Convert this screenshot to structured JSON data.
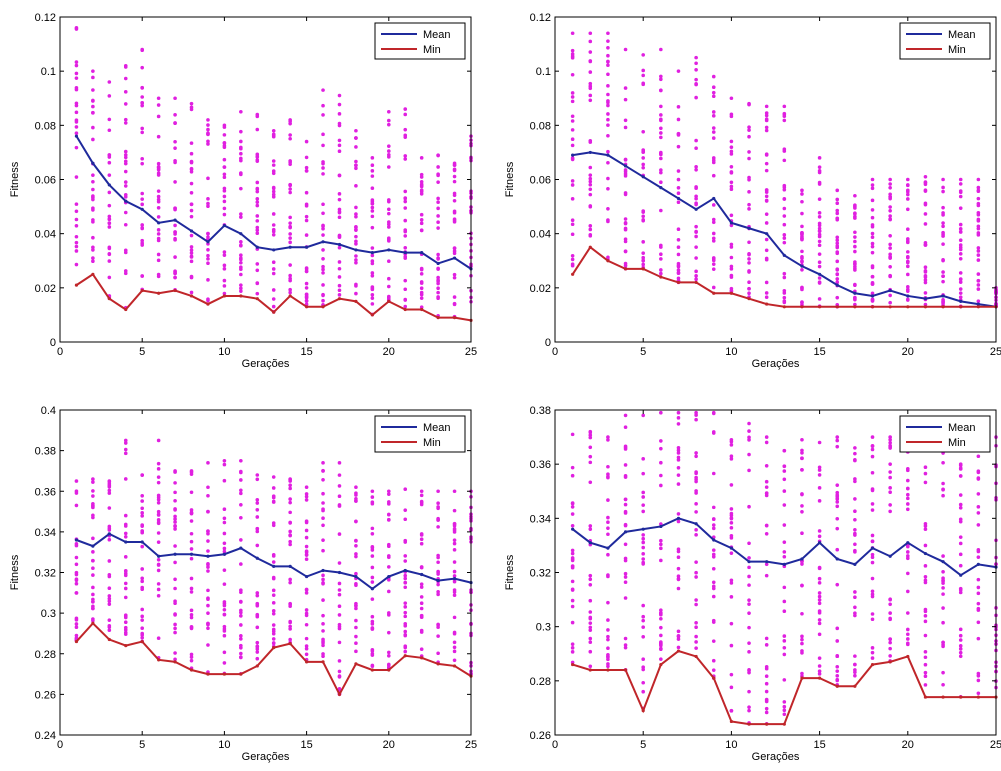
{
  "colors": {
    "mean": "#1f2a9c",
    "min": "#c0262a",
    "points": "#e020e0",
    "axis": "#000000",
    "background": "#ffffff"
  },
  "chart_data": [
    {
      "type": "scatter",
      "title": "",
      "xlabel": "Gerações",
      "ylabel": "Fitness",
      "xlim": [
        0,
        25
      ],
      "ylim": [
        0,
        0.12
      ],
      "xticks": [
        0,
        5,
        10,
        15,
        20,
        25
      ],
      "yticks": [
        0,
        0.02,
        0.04,
        0.06,
        0.08,
        0.1,
        0.12
      ],
      "xtick_labels": [
        "0",
        "5",
        "10",
        "15",
        "20",
        "25"
      ],
      "ytick_labels": [
        "0",
        "0.02",
        "0.04",
        "0.06",
        "0.08",
        "0.1",
        "0.12"
      ],
      "legend": {
        "position": "top-right",
        "entries": [
          "Mean",
          "Min"
        ]
      },
      "grid": false,
      "x": [
        1,
        2,
        3,
        4,
        5,
        6,
        7,
        8,
        9,
        10,
        11,
        12,
        13,
        14,
        15,
        16,
        17,
        18,
        19,
        20,
        21,
        22,
        23,
        24,
        25
      ],
      "series": [
        {
          "name": "Mean",
          "values": [
            0.076,
            0.066,
            0.058,
            0.052,
            0.049,
            0.044,
            0.045,
            0.041,
            0.037,
            0.043,
            0.04,
            0.035,
            0.034,
            0.035,
            0.035,
            0.037,
            0.036,
            0.034,
            0.033,
            0.034,
            0.033,
            0.033,
            0.029,
            0.031,
            0.027
          ]
        },
        {
          "name": "Min",
          "values": [
            0.021,
            0.025,
            0.016,
            0.012,
            0.019,
            0.018,
            0.019,
            0.017,
            0.014,
            0.017,
            0.017,
            0.016,
            0.011,
            0.017,
            0.013,
            0.013,
            0.016,
            0.015,
            0.01,
            0.015,
            0.012,
            0.012,
            0.009,
            0.009,
            0.008
          ]
        }
      ],
      "population_range": {
        "max": [
          0.116,
          0.1,
          0.096,
          0.102,
          0.108,
          0.09,
          0.09,
          0.088,
          0.082,
          0.08,
          0.085,
          0.084,
          0.078,
          0.082,
          0.074,
          0.093,
          0.091,
          0.078,
          0.068,
          0.085,
          0.086,
          0.068,
          0.069,
          0.066,
          0.076
        ]
      }
    },
    {
      "type": "scatter",
      "title": "",
      "xlabel": "Gerações",
      "ylabel": "Fitness",
      "xlim": [
        0,
        25
      ],
      "ylim": [
        0,
        0.12
      ],
      "xticks": [
        0,
        5,
        10,
        15,
        20,
        25
      ],
      "yticks": [
        0,
        0.02,
        0.04,
        0.06,
        0.08,
        0.1,
        0.12
      ],
      "xtick_labels": [
        "0",
        "5",
        "10",
        "15",
        "20",
        "25"
      ],
      "ytick_labels": [
        "0",
        "0.02",
        "0.04",
        "0.06",
        "0.08",
        "0.1",
        "0.12"
      ],
      "legend": {
        "position": "top-right",
        "entries": [
          "Mean",
          "Min"
        ]
      },
      "grid": false,
      "x": [
        1,
        2,
        3,
        4,
        5,
        6,
        7,
        8,
        9,
        10,
        11,
        12,
        13,
        14,
        15,
        16,
        17,
        18,
        19,
        20,
        21,
        22,
        23,
        24,
        25
      ],
      "series": [
        {
          "name": "Mean",
          "values": [
            0.069,
            0.07,
            0.069,
            0.065,
            0.061,
            0.057,
            0.053,
            0.049,
            0.053,
            0.044,
            0.042,
            0.04,
            0.032,
            0.028,
            0.025,
            0.021,
            0.018,
            0.017,
            0.019,
            0.017,
            0.016,
            0.017,
            0.015,
            0.014,
            0.013
          ]
        },
        {
          "name": "Min",
          "values": [
            0.025,
            0.035,
            0.03,
            0.027,
            0.027,
            0.024,
            0.022,
            0.022,
            0.018,
            0.018,
            0.016,
            0.014,
            0.013,
            0.013,
            0.013,
            0.013,
            0.013,
            0.013,
            0.013,
            0.013,
            0.013,
            0.013,
            0.013,
            0.013,
            0.013
          ]
        }
      ],
      "population_range": {
        "max": [
          0.114,
          0.114,
          0.114,
          0.108,
          0.106,
          0.108,
          0.1,
          0.105,
          0.098,
          0.09,
          0.088,
          0.087,
          0.087,
          0.056,
          0.068,
          0.056,
          0.054,
          0.06,
          0.06,
          0.06,
          0.061,
          0.06,
          0.06,
          0.06,
          0.02
        ]
      }
    },
    {
      "type": "scatter",
      "title": "",
      "xlabel": "Gerações",
      "ylabel": "Fitness",
      "xlim": [
        0,
        25
      ],
      "ylim": [
        0.24,
        0.4
      ],
      "xticks": [
        0,
        5,
        10,
        15,
        20,
        25
      ],
      "yticks": [
        0.24,
        0.26,
        0.28,
        0.3,
        0.32,
        0.34,
        0.36,
        0.38,
        0.4
      ],
      "xtick_labels": [
        "0",
        "5",
        "10",
        "15",
        "20",
        "25"
      ],
      "ytick_labels": [
        "0.24",
        "0.26",
        "0.28",
        "0.3",
        "0.32",
        "0.34",
        "0.36",
        "0.38",
        "0.4"
      ],
      "legend": {
        "position": "top-right",
        "entries": [
          "Mean",
          "Min"
        ]
      },
      "grid": false,
      "x": [
        1,
        2,
        3,
        4,
        5,
        6,
        7,
        8,
        9,
        10,
        11,
        12,
        13,
        14,
        15,
        16,
        17,
        18,
        19,
        20,
        21,
        22,
        23,
        24,
        25
      ],
      "series": [
        {
          "name": "Mean",
          "values": [
            0.336,
            0.333,
            0.339,
            0.335,
            0.335,
            0.328,
            0.329,
            0.329,
            0.328,
            0.329,
            0.332,
            0.327,
            0.323,
            0.323,
            0.318,
            0.321,
            0.32,
            0.318,
            0.312,
            0.318,
            0.321,
            0.319,
            0.316,
            0.317,
            0.315
          ]
        },
        {
          "name": "Min",
          "values": [
            0.286,
            0.295,
            0.287,
            0.284,
            0.286,
            0.277,
            0.276,
            0.272,
            0.27,
            0.27,
            0.27,
            0.274,
            0.283,
            0.285,
            0.276,
            0.276,
            0.26,
            0.275,
            0.272,
            0.272,
            0.279,
            0.278,
            0.275,
            0.274,
            0.269
          ]
        }
      ],
      "population_range": {
        "max": [
          0.365,
          0.366,
          0.365,
          0.385,
          0.368,
          0.385,
          0.37,
          0.37,
          0.374,
          0.375,
          0.375,
          0.368,
          0.367,
          0.366,
          0.362,
          0.374,
          0.374,
          0.362,
          0.36,
          0.36,
          0.361,
          0.36,
          0.36,
          0.36,
          0.36
        ]
      }
    },
    {
      "type": "scatter",
      "title": "",
      "xlabel": "Gerações",
      "ylabel": "Fitness",
      "xlim": [
        0,
        25
      ],
      "ylim": [
        0.26,
        0.38
      ],
      "xticks": [
        0,
        5,
        10,
        15,
        20,
        25
      ],
      "yticks": [
        0.26,
        0.28,
        0.3,
        0.32,
        0.34,
        0.36,
        0.38
      ],
      "xtick_labels": [
        "0",
        "5",
        "10",
        "15",
        "20",
        "25"
      ],
      "ytick_labels": [
        "0.26",
        "0.28",
        "0.3",
        "0.32",
        "0.34",
        "0.36",
        "0.38"
      ],
      "legend": {
        "position": "top-right",
        "entries": [
          "Mean",
          "Min"
        ]
      },
      "grid": false,
      "x": [
        1,
        2,
        3,
        4,
        5,
        6,
        7,
        8,
        9,
        10,
        11,
        12,
        13,
        14,
        15,
        16,
        17,
        18,
        19,
        20,
        21,
        22,
        23,
        24,
        25
      ],
      "series": [
        {
          "name": "Mean",
          "values": [
            0.336,
            0.331,
            0.329,
            0.335,
            0.336,
            0.337,
            0.34,
            0.338,
            0.332,
            0.329,
            0.324,
            0.324,
            0.323,
            0.325,
            0.331,
            0.325,
            0.323,
            0.329,
            0.326,
            0.331,
            0.327,
            0.324,
            0.319,
            0.323,
            0.322
          ]
        },
        {
          "name": "Min",
          "values": [
            0.286,
            0.284,
            0.284,
            0.284,
            0.269,
            0.286,
            0.291,
            0.289,
            0.281,
            0.265,
            0.264,
            0.264,
            0.264,
            0.281,
            0.281,
            0.278,
            0.278,
            0.286,
            0.287,
            0.289,
            0.274,
            0.274,
            0.274,
            0.274,
            0.274
          ]
        }
      ],
      "population_range": {
        "max": [
          0.371,
          0.372,
          0.37,
          0.378,
          0.378,
          0.379,
          0.379,
          0.379,
          0.379,
          0.369,
          0.375,
          0.37,
          0.365,
          0.369,
          0.368,
          0.37,
          0.366,
          0.37,
          0.37,
          0.37,
          0.369,
          0.37,
          0.36,
          0.37,
          0.37
        ]
      }
    }
  ]
}
